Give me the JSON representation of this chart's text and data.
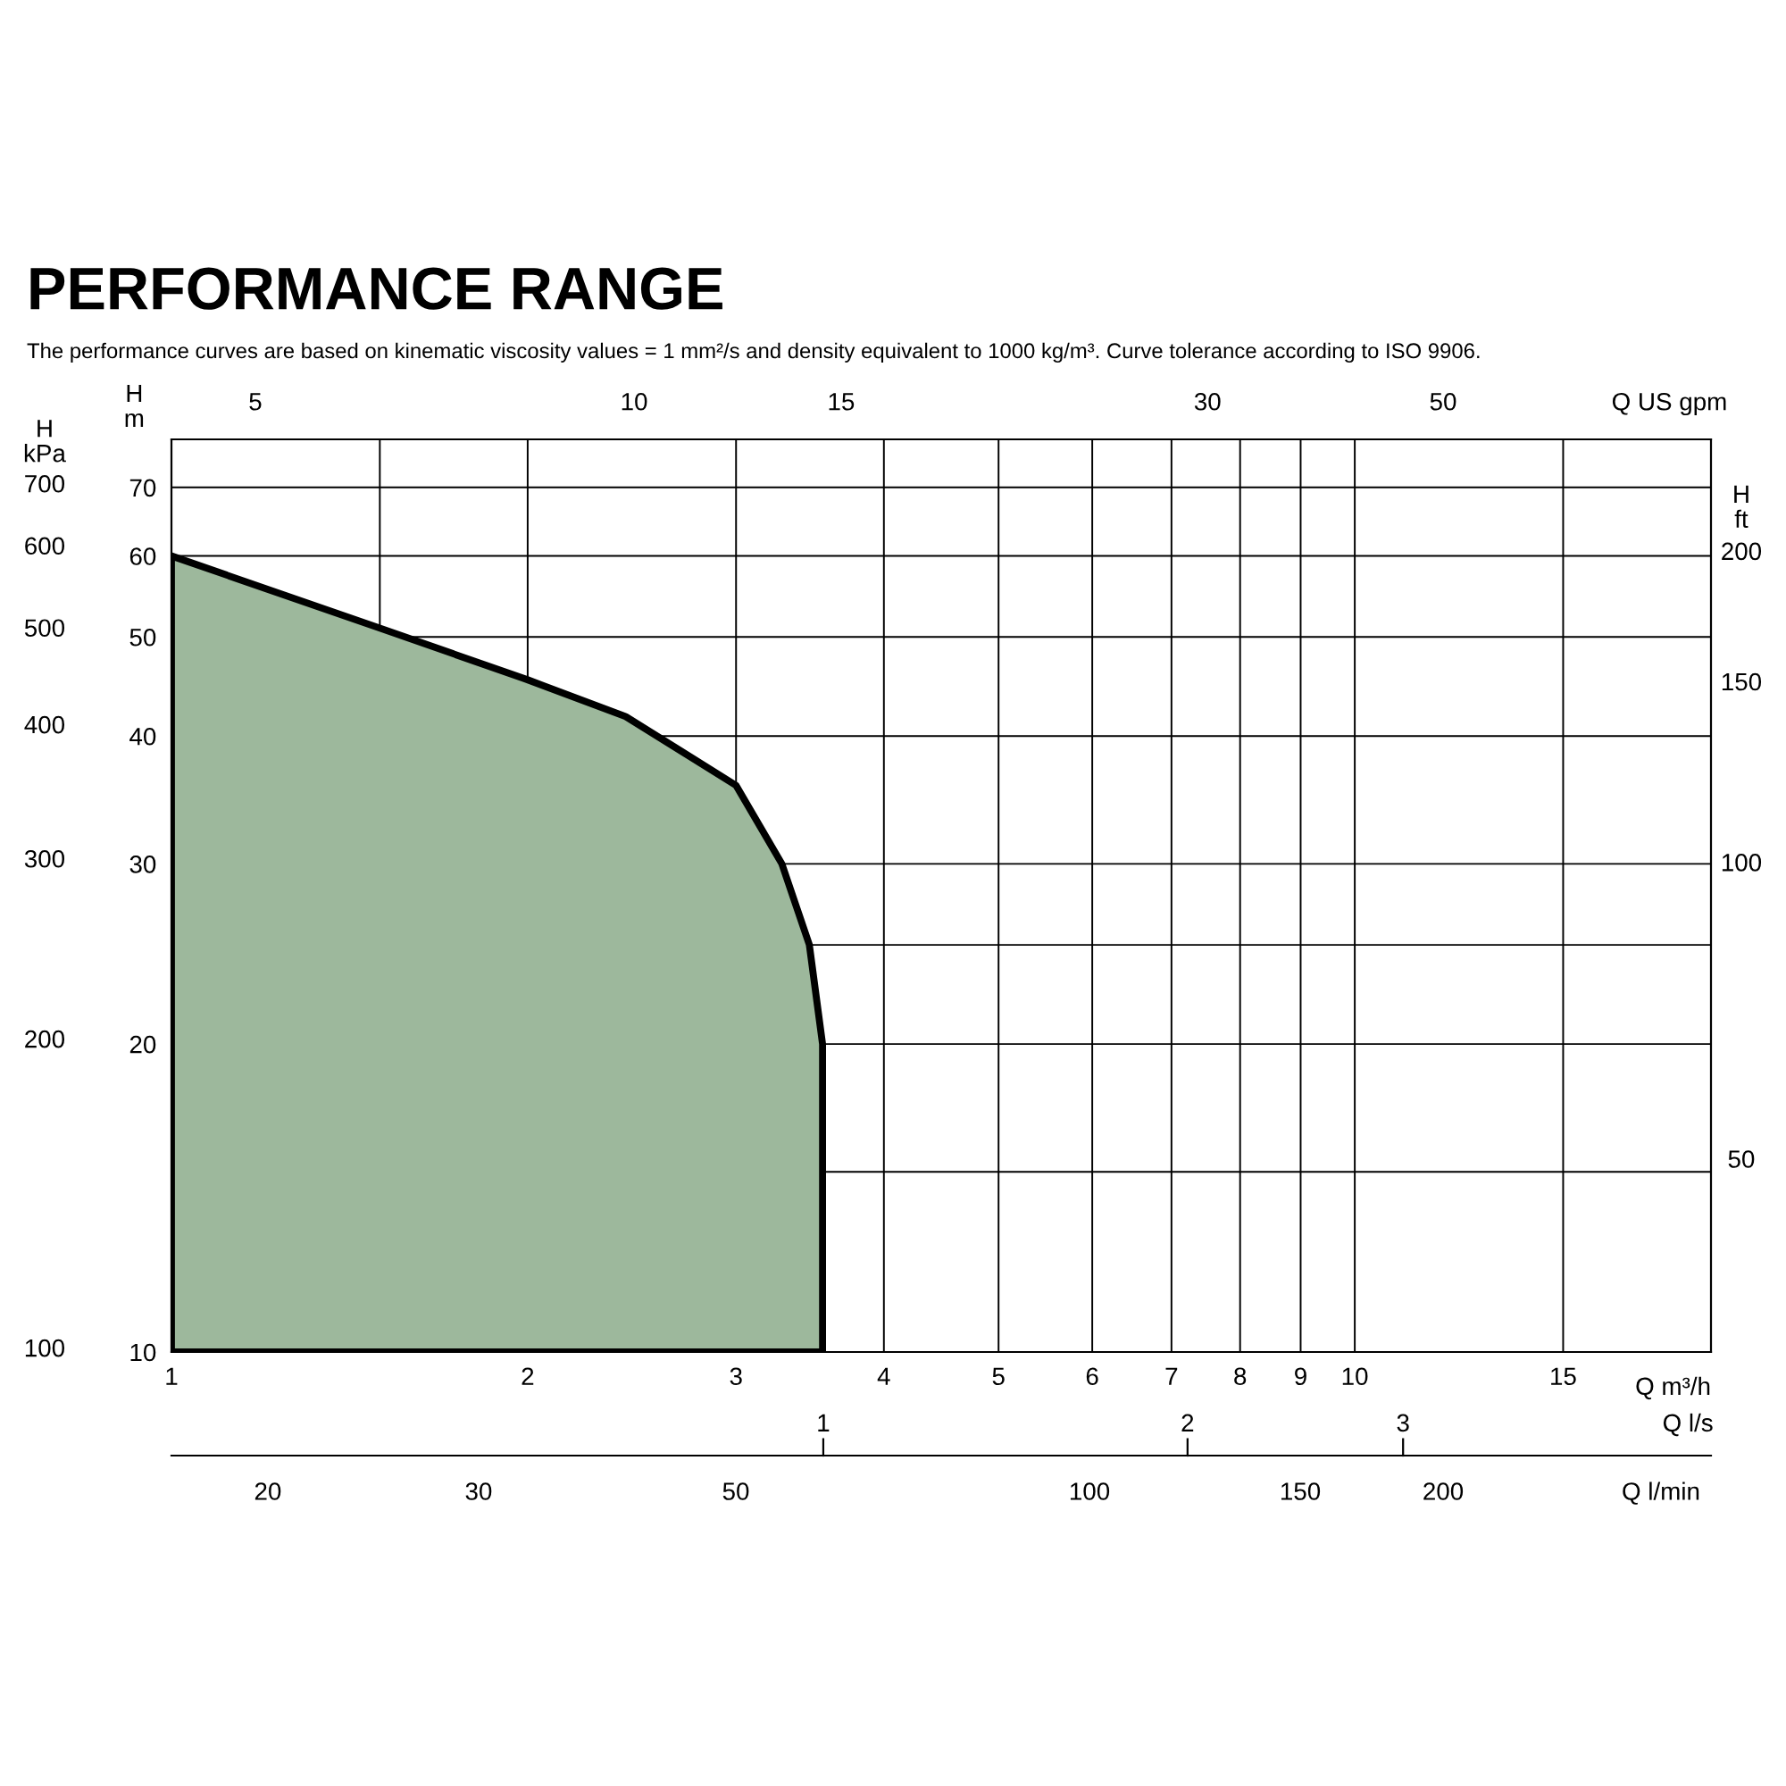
{
  "chart_data": {
    "type": "area",
    "title": "PERFORMANCE RANGE",
    "subtitle": "The performance curves are based on kinematic viscosity values = 1 mm²/s and density equivalent to 1000 kg/m³. Curve tolerance according to ISO 9906.",
    "xlabel": "Q m³/h",
    "ylabel": "H\nm",
    "log": "xy",
    "grid": true,
    "legend": false,
    "xlim": [
      1,
      20
    ],
    "xticks": [
      1,
      {
        "value": 1.5,
        "label": null
      },
      2,
      3,
      4,
      5,
      6,
      7,
      8,
      9,
      10,
      15
    ],
    "ylim": [
      10,
      78
    ],
    "yticks": [
      10,
      {
        "value": 15,
        "label": null
      },
      20,
      {
        "value": 25,
        "label": null
      },
      30,
      40,
      50,
      60,
      70
    ],
    "series": [
      {
        "color": "#9db89c",
        "x": [
          1,
          1.5,
          2,
          2.42,
          3,
          3.28,
          3.46,
          3.55,
          3.55
        ],
        "values": [
          60,
          51,
          45.4,
          41.8,
          35.8,
          30,
          25,
          20,
          10
        ]
      }
    ],
    "annotations": [
      "H\nkPa",
      "100",
      "200",
      "300",
      "400",
      "500",
      "600",
      "700",
      "H\nft",
      "50",
      "100",
      "150",
      "200",
      "Q US gpm",
      "5",
      "10",
      "15",
      "30",
      "50",
      "Q l/s",
      "1",
      "2",
      "3",
      "Q l/min",
      "20",
      "30",
      "50",
      "100",
      "150",
      "200"
    ]
  }
}
